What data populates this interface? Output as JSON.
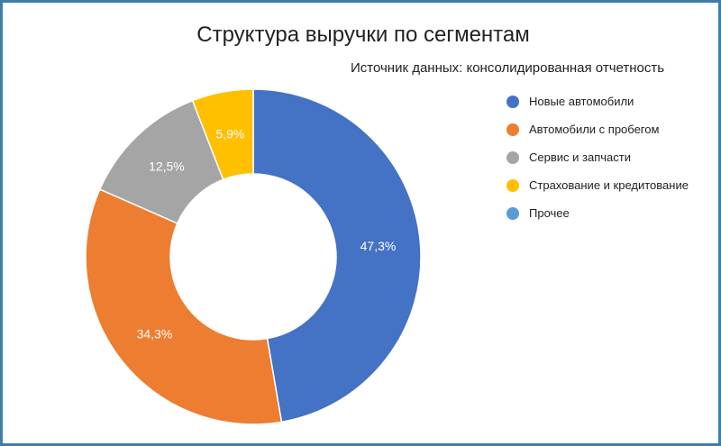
{
  "chart_data": {
    "type": "pie",
    "variant": "donut",
    "title": "Структура выручки по сегментам",
    "subtitle": "Источник данных: консолидированная отчетность",
    "legend_position": "right",
    "slices": [
      {
        "label": "Новые автомобили",
        "value": 47.3,
        "value_label": "47,3%",
        "color": "#4472c4"
      },
      {
        "label": "Автомобили с пробегом",
        "value": 34.3,
        "value_label": "34,3%",
        "color": "#ed7d31"
      },
      {
        "label": "Сервис и запчасти",
        "value": 12.5,
        "value_label": "12,5%",
        "color": "#a5a5a5"
      },
      {
        "label": "Страхование и кредитование",
        "value": 5.9,
        "value_label": "5,9%",
        "color": "#ffc000"
      },
      {
        "label": "Прочее",
        "value": 0,
        "value_label": "",
        "color": "#5b9bd5"
      }
    ]
  }
}
